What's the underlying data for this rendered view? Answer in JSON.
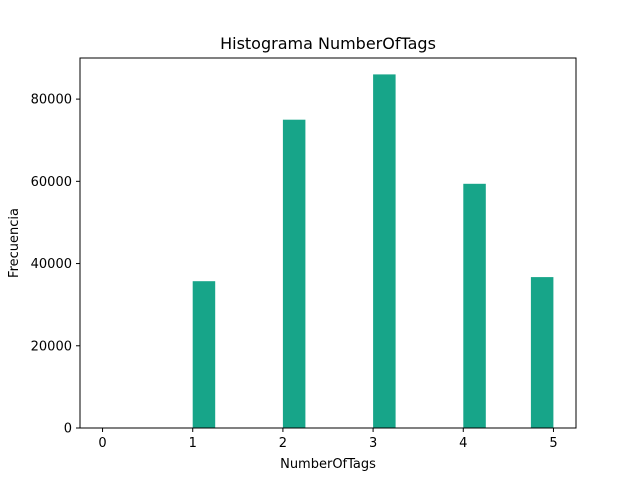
{
  "chart_data": {
    "type": "bar",
    "title": "Histograma NumberOfTags",
    "xlabel": "NumberOfTags",
    "ylabel": "Frecuencia",
    "xlim": [
      -0.25,
      5.25
    ],
    "ylim": [
      0,
      90000
    ],
    "xticks": [
      0,
      1,
      2,
      3,
      4,
      5
    ],
    "yticks": [
      0,
      20000,
      40000,
      60000,
      80000
    ],
    "bar_color": "#17a589",
    "bars": [
      {
        "x_start": 0.0,
        "x_end": 0.25,
        "value": 0
      },
      {
        "x_start": 1.0,
        "x_end": 1.25,
        "value": 35700
      },
      {
        "x_start": 2.0,
        "x_end": 2.25,
        "value": 75000
      },
      {
        "x_start": 3.0,
        "x_end": 3.25,
        "value": 86000
      },
      {
        "x_start": 4.0,
        "x_end": 4.25,
        "value": 59400
      },
      {
        "x_start": 4.75,
        "x_end": 5.0,
        "value": 36700
      }
    ],
    "grid": false,
    "legend": "none"
  }
}
